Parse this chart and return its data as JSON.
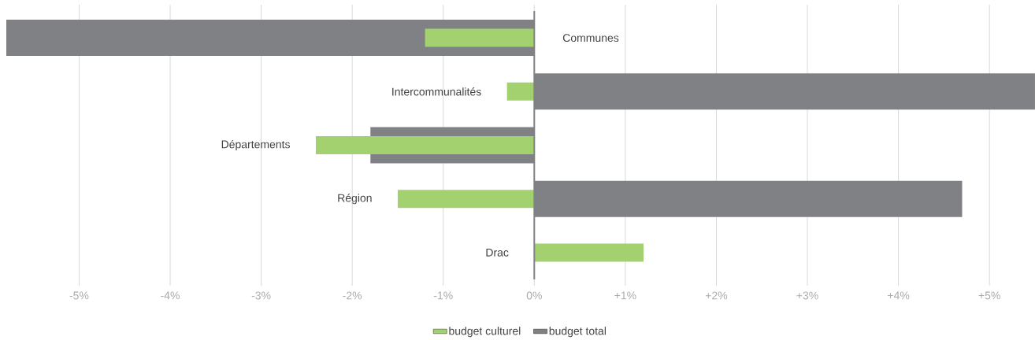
{
  "chart_data": {
    "type": "bar",
    "orientation": "horizontal",
    "categories": [
      "Communes",
      "Intercommunalités",
      "Départements",
      "Région",
      "Drac"
    ],
    "series": [
      {
        "name": "budget culturel",
        "color": "#a3d16f",
        "values": [
          -1.2,
          -0.3,
          -2.4,
          -1.5,
          1.2
        ]
      },
      {
        "name": "budget total",
        "color": "#808184",
        "values": [
          -5.8,
          5.5,
          -1.8,
          4.7,
          null
        ]
      }
    ],
    "xlim": [
      -5.8,
      5.5
    ],
    "xticks": [
      {
        "value": -5,
        "label": "-5%"
      },
      {
        "value": -4,
        "label": "-4%"
      },
      {
        "value": -3,
        "label": "-3%"
      },
      {
        "value": -2,
        "label": "-2%"
      },
      {
        "value": -1,
        "label": "-1%"
      },
      {
        "value": 0,
        "label": "0%"
      },
      {
        "value": 1,
        "label": "+1%"
      },
      {
        "value": 2,
        "label": "+2%"
      },
      {
        "value": 3,
        "label": "+3%"
      },
      {
        "value": 4,
        "label": "+4%"
      },
      {
        "value": 5,
        "label": "+5%"
      }
    ],
    "grid": "x",
    "legend": "bottom"
  }
}
